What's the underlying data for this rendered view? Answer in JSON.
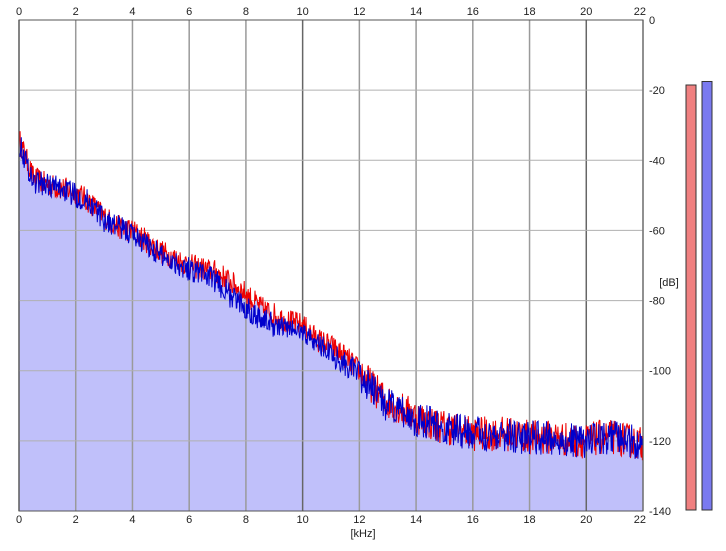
{
  "chart_data": {
    "type": "area",
    "title": "",
    "xlabel": "[kHz]",
    "ylabel": "[dB]",
    "xlim": [
      0,
      22
    ],
    "ylim": [
      -140,
      0
    ],
    "x_ticks": [
      "0",
      "2",
      "4",
      "6",
      "8",
      "10",
      "12",
      "14",
      "16",
      "18",
      "20",
      "22"
    ],
    "y_ticks": [
      "0",
      "-20",
      "-40",
      "-60",
      "-80",
      "-100",
      "-120",
      "-140"
    ],
    "grid": true,
    "x_axis_top_and_bottom": true,
    "y_axis_side": "right",
    "x": [
      0,
      0.5,
      1,
      1.5,
      2,
      2.5,
      3,
      3.5,
      4,
      4.5,
      5,
      5.5,
      6,
      6.5,
      7,
      7.5,
      8,
      8.5,
      9,
      9.5,
      10,
      10.5,
      11,
      11.5,
      12,
      12.5,
      13,
      13.5,
      14,
      14.5,
      15,
      15.5,
      16,
      16.5,
      17,
      17.5,
      18,
      18.5,
      19,
      19.5,
      20,
      20.5,
      21,
      21.5,
      22
    ],
    "series": [
      {
        "color": "#ee0000",
        "values": [
          -34,
          -45,
          -47,
          -48,
          -49,
          -52,
          -56,
          -59,
          -60,
          -63,
          -66,
          -68,
          -70,
          -71,
          -72,
          -75,
          -78,
          -82,
          -84,
          -86,
          -87,
          -91,
          -93,
          -96,
          -100,
          -105,
          -109,
          -111,
          -113,
          -115,
          -116,
          -117,
          -118,
          -118,
          -118,
          -118,
          -119,
          -119,
          -119,
          -120,
          -120,
          -119,
          -119,
          -120,
          -121
        ]
      },
      {
        "color": "#0000cc",
        "values": [
          -35,
          -46,
          -47,
          -48,
          -50,
          -52,
          -57,
          -59,
          -61,
          -64,
          -67,
          -69,
          -71,
          -72,
          -75,
          -79,
          -82,
          -85,
          -87,
          -88,
          -89,
          -92,
          -95,
          -98,
          -101,
          -106,
          -110,
          -112,
          -114,
          -115,
          -117,
          -117,
          -118,
          -118,
          -118,
          -119,
          -119,
          -119,
          -120,
          -120,
          -120,
          -120,
          -119,
          -120,
          -121
        ]
      }
    ],
    "fill_color": "#c0c0fa",
    "meters": [
      {
        "color": "#f08080",
        "value": -18
      },
      {
        "color": "#7a7af0",
        "value": -17
      }
    ]
  }
}
